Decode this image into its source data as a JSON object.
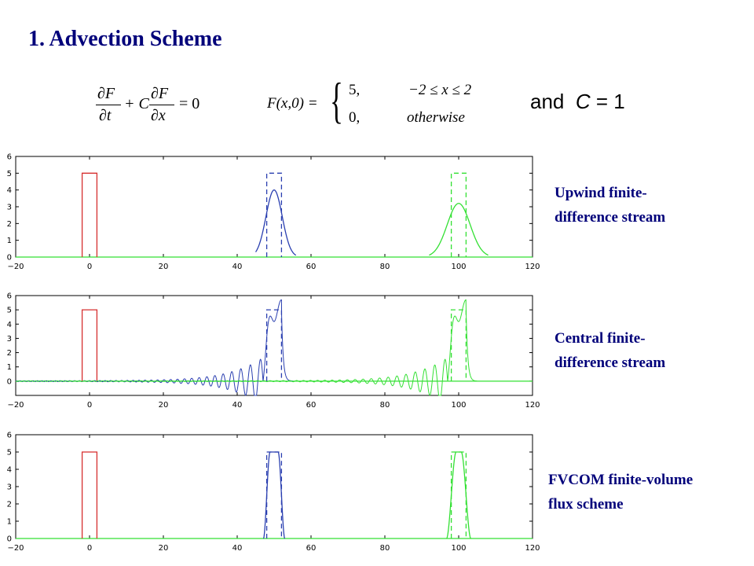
{
  "title": "1. Advection Scheme",
  "equations": {
    "pde": {
      "dF": "∂F",
      "dt": "∂t",
      "plus": "+ C",
      "dF2": "∂F",
      "dx": "∂x",
      "eq0": "= 0"
    },
    "initial": {
      "lhs": "F(x,0) =",
      "case1_value": "5,",
      "case1_cond": "−2 ≤ x ≤ 2",
      "case2_value": "0,",
      "case2_cond": "otherwise"
    },
    "constant": {
      "and": "and",
      "c": "C",
      "eq": "= 1"
    }
  },
  "labels": {
    "upwind_line1": "Upwind finite-",
    "upwind_line2": "difference stream",
    "central_line1": "Central finite-",
    "central_line2": "difference  stream",
    "fvcom_line1": "FVCOM finite-volume",
    "fvcom_line2": "flux scheme"
  },
  "colors": {
    "initial": "#d62f2f",
    "t50": "#2a3fb0",
    "t100": "#33e033",
    "zero_line": "#33e033",
    "title": "#00007a"
  },
  "chart_data": [
    {
      "type": "line",
      "panel": "upwind",
      "xlim": [
        -20,
        120
      ],
      "ylim": [
        0,
        6
      ],
      "xticks": [
        -20,
        0,
        20,
        40,
        60,
        80,
        100,
        120
      ],
      "yticks": [
        0,
        1,
        2,
        3,
        4,
        5,
        6
      ],
      "series": [
        {
          "color": "#d62f2f",
          "style": "solid",
          "kind": "box",
          "x": [
            -2,
            2
          ],
          "height": 5
        },
        {
          "color": "#2a3fb0",
          "style": "dashed",
          "kind": "box",
          "x": [
            48,
            52
          ],
          "height": 5
        },
        {
          "color": "#2a3fb0",
          "style": "solid",
          "kind": "gaussian",
          "center": 50,
          "peak": 4.0,
          "sigma": 2.2,
          "support": [
            45,
            56
          ]
        },
        {
          "color": "#33e033",
          "style": "dashed",
          "kind": "box",
          "x": [
            98,
            102
          ],
          "height": 5
        },
        {
          "color": "#33e033",
          "style": "solid",
          "kind": "gaussian",
          "center": 100,
          "peak": 3.2,
          "sigma": 3.1,
          "support": [
            92,
            108
          ]
        }
      ]
    },
    {
      "type": "line",
      "panel": "central",
      "xlim": [
        -20,
        120
      ],
      "ylim": [
        -1,
        6
      ],
      "xticks": [
        -20,
        0,
        20,
        40,
        60,
        80,
        100,
        120
      ],
      "yticks": [
        0,
        1,
        2,
        3,
        4,
        5,
        6
      ],
      "series": [
        {
          "color": "#d62f2f",
          "style": "solid",
          "kind": "box",
          "x": [
            -2,
            2
          ],
          "height": 5
        },
        {
          "color": "#2a3fb0",
          "style": "dashed",
          "kind": "box",
          "x": [
            48,
            52
          ],
          "height": 5
        },
        {
          "color": "#2a3fb0",
          "style": "solid",
          "kind": "dispersive",
          "front": 52,
          "peak": 6.0,
          "wave_start": -20
        },
        {
          "color": "#33e033",
          "style": "dashed",
          "kind": "box",
          "x": [
            98,
            102
          ],
          "height": 5
        },
        {
          "color": "#33e033",
          "style": "solid",
          "kind": "dispersive",
          "front": 102,
          "peak": 6.0,
          "wave_start": -20
        }
      ]
    },
    {
      "type": "line",
      "panel": "fvcom",
      "xlim": [
        -20,
        120
      ],
      "ylim": [
        0,
        6
      ],
      "xticks": [
        -20,
        0,
        20,
        40,
        60,
        80,
        100,
        120
      ],
      "yticks": [
        0,
        1,
        2,
        3,
        4,
        5,
        6
      ],
      "series": [
        {
          "color": "#d62f2f",
          "style": "solid",
          "kind": "box",
          "x": [
            -2,
            2
          ],
          "height": 5
        },
        {
          "color": "#2a3fb0",
          "style": "dashed",
          "kind": "box",
          "x": [
            48,
            52
          ],
          "height": 5
        },
        {
          "color": "#2a3fb0",
          "style": "solid",
          "kind": "smoothbox",
          "x": [
            48,
            52
          ],
          "height": 5,
          "edge": 0.9
        },
        {
          "color": "#33e033",
          "style": "dashed",
          "kind": "box",
          "x": [
            98,
            102
          ],
          "height": 5
        },
        {
          "color": "#33e033",
          "style": "solid",
          "kind": "smoothbox",
          "x": [
            98,
            102
          ],
          "height": 5,
          "edge": 1.3
        }
      ]
    }
  ]
}
